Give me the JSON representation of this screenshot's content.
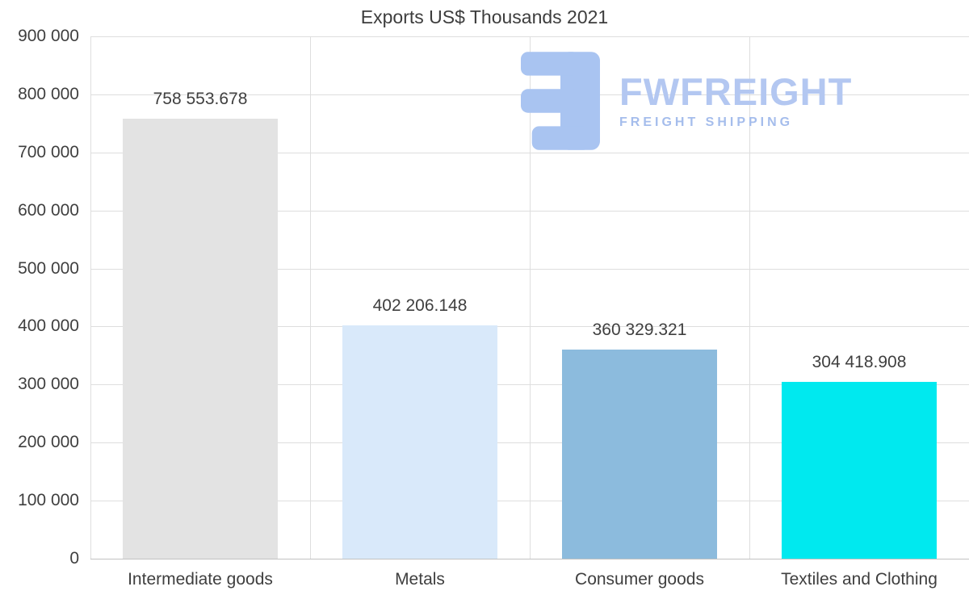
{
  "chart_data": {
    "type": "bar",
    "title": "Exports US$ Thousands 2021",
    "categories": [
      "Intermediate goods",
      "Metals",
      "Consumer goods",
      "Textiles and Clothing"
    ],
    "values": [
      758553.678,
      402206.148,
      360329.321,
      304418.908
    ],
    "value_labels": [
      "758 553.678",
      "402 206.148",
      "360 329.321",
      "304 418.908"
    ],
    "bar_colors": [
      "#e3e3e3",
      "#d9e9fa",
      "#8cbbdd",
      "#00e9ef"
    ],
    "xlabel": "",
    "ylabel": "",
    "ylim": [
      0,
      900000
    ],
    "ytick_step": 100000,
    "ytick_labels": [
      "0",
      "100 000",
      "200 000",
      "300 000",
      "400 000",
      "500 000",
      "600 000",
      "700 000",
      "800 000",
      "900 000"
    ],
    "grid": true,
    "legend": false
  },
  "watermark": {
    "brand": "FWFREIGHT",
    "tagline": "FREIGHT SHIPPING",
    "color": "#aac4f1"
  },
  "colors": {
    "grid": "#dedede",
    "axis": "#c2c2c2",
    "text": "#3f3f3f",
    "background": "#ffffff"
  }
}
